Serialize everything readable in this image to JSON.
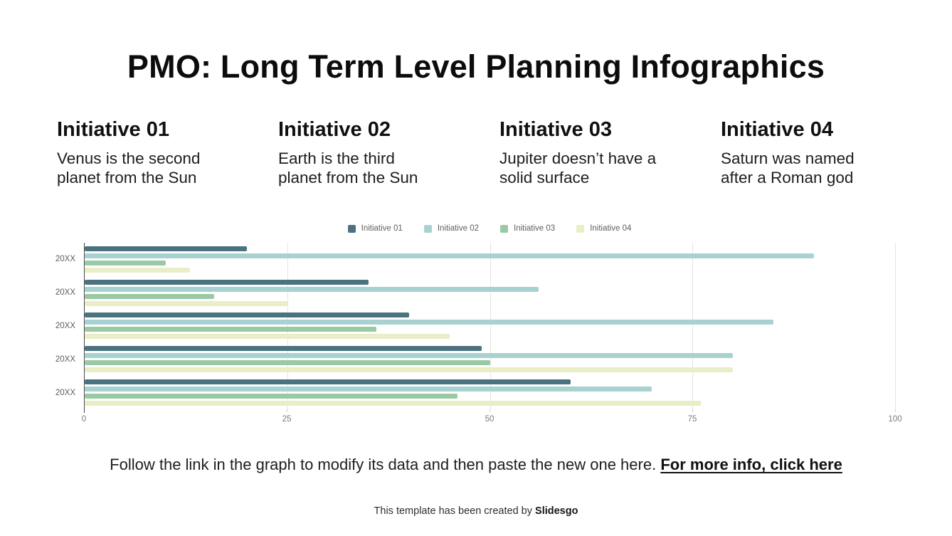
{
  "slide": {
    "title": "PMO: Long Term Level Planning Infographics",
    "initiatives": [
      {
        "heading": "Initiative 01",
        "description": "Venus is the second planet from the Sun"
      },
      {
        "heading": "Initiative 02",
        "description": "Earth is the third planet from the Sun"
      },
      {
        "heading": "Initiative 03",
        "description": "Jupiter doesn’t have a solid surface"
      },
      {
        "heading": "Initiative 04",
        "description": "Saturn was named after a Roman god"
      }
    ],
    "footer": {
      "instruction": "Follow the link in the graph to modify its data and then paste the new one here.",
      "link_label": "For more info, click here"
    },
    "credit": {
      "text": "This template has been created by",
      "brand": "Slidesgo"
    }
  },
  "chart_data": {
    "type": "bar",
    "orientation": "horizontal",
    "title": "",
    "xlabel": "",
    "ylabel": "",
    "categories": [
      "20XX",
      "20XX",
      "20XX",
      "20XX",
      "20XX"
    ],
    "series": [
      {
        "name": "Initiative 01",
        "color": "#4a727f",
        "values": [
          20,
          35,
          40,
          49,
          60
        ]
      },
      {
        "name": "Initiative 02",
        "color": "#a8d2d0",
        "values": [
          90,
          56,
          85,
          80,
          70
        ]
      },
      {
        "name": "Initiative 03",
        "color": "#9acaa3",
        "values": [
          10,
          16,
          36,
          50,
          46
        ]
      },
      {
        "name": "Initiative 04",
        "color": "#e9eec6",
        "values": [
          13,
          25,
          45,
          80,
          76
        ]
      }
    ],
    "xlim": [
      0,
      100
    ],
    "x_ticks": [
      0,
      25,
      50,
      75,
      100
    ],
    "grid": true,
    "legend_position": "top"
  }
}
